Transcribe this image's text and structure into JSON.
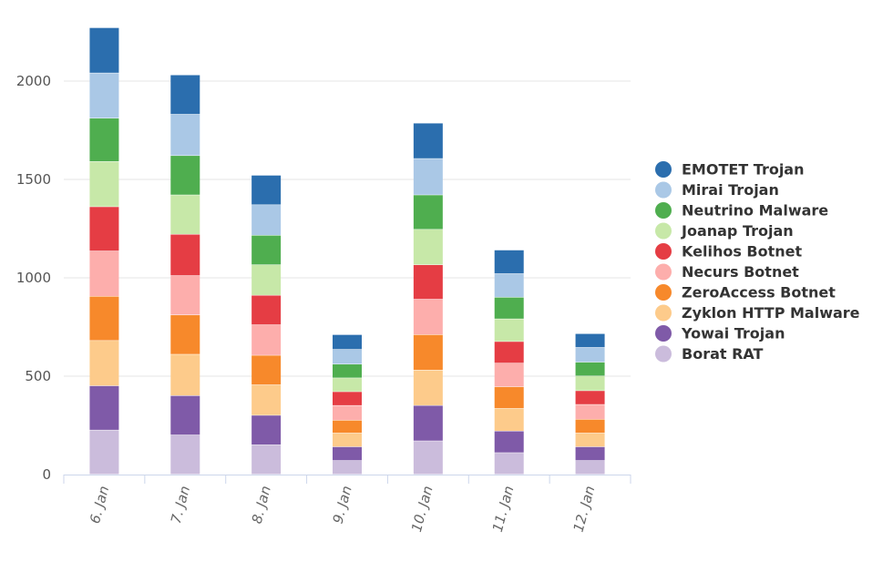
{
  "chart_data": {
    "type": "bar",
    "stacked": true,
    "categories": [
      "6. Jan",
      "7. Jan",
      "8. Jan",
      "9. Jan",
      "10. Jan",
      "11. Jan",
      "12. Jan"
    ],
    "series": [
      {
        "name": "Borat RAT",
        "color": "#cbbcdc",
        "values": [
          225,
          200,
          150,
          70,
          170,
          110,
          70
        ]
      },
      {
        "name": "Yowai Trojan",
        "color": "#7f5aa8",
        "values": [
          225,
          200,
          150,
          70,
          180,
          110,
          70
        ]
      },
      {
        "name": "Zyklon HTTP Malware",
        "color": "#fdcb8b",
        "values": [
          230,
          210,
          155,
          70,
          180,
          115,
          70
        ]
      },
      {
        "name": "ZeroAccess Botnet",
        "color": "#f7892b",
        "values": [
          225,
          200,
          150,
          65,
          180,
          110,
          70
        ]
      },
      {
        "name": "Necurs Botnet",
        "color": "#fdaeac",
        "values": [
          230,
          200,
          155,
          75,
          180,
          120,
          75
        ]
      },
      {
        "name": "Kelihos Botnet",
        "color": "#e53d44",
        "values": [
          225,
          210,
          150,
          70,
          175,
          110,
          70
        ]
      },
      {
        "name": "Joanap Trojan",
        "color": "#c7e8a8",
        "values": [
          230,
          200,
          155,
          70,
          180,
          115,
          75
        ]
      },
      {
        "name": "Neutrino Malware",
        "color": "#4fae4f",
        "values": [
          220,
          200,
          150,
          70,
          175,
          110,
          70
        ]
      },
      {
        "name": "Mirai Trojan",
        "color": "#aac8e6",
        "values": [
          230,
          210,
          155,
          75,
          185,
          120,
          75
        ]
      },
      {
        "name": "EMOTET Trojan",
        "color": "#2b6eae",
        "values": [
          230,
          200,
          150,
          75,
          180,
          120,
          70
        ]
      }
    ],
    "legend_order": [
      "EMOTET Trojan",
      "Mirai Trojan",
      "Neutrino Malware",
      "Joanap Trojan",
      "Kelihos Botnet",
      "Necurs Botnet",
      "ZeroAccess Botnet",
      "Zyklon HTTP Malware",
      "Yowai Trojan",
      "Borat RAT"
    ],
    "yticks": [
      0,
      500,
      1000,
      1500,
      2000
    ],
    "ylim": [
      0,
      2300
    ],
    "grid": true,
    "legend_position": "right",
    "title": "",
    "xlabel": "",
    "ylabel": ""
  }
}
